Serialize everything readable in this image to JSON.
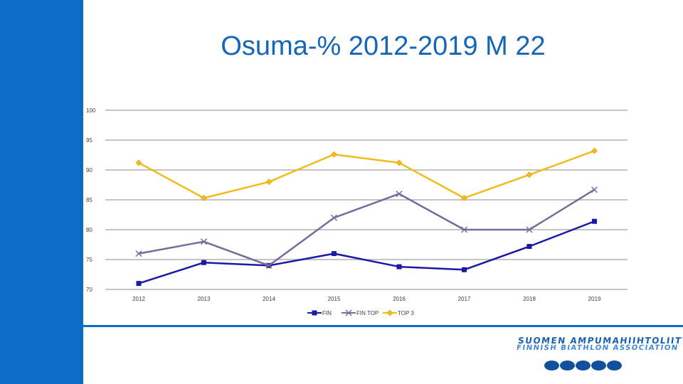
{
  "title": "Osuma-% 2012-2019 M 22",
  "colors": {
    "brand_blue": "#0a6ec4",
    "title_blue": "#1565b8",
    "fin": "#1a1aa6",
    "fin_top": "#7a6a9a",
    "top3": "#f0bc1c"
  },
  "logo": {
    "line1": "SUOMEN AMPUMAHIIHTOLIITTO",
    "line2": "FINNISH BIATHLON ASSOCIATION"
  },
  "chart_data": {
    "type": "line",
    "title": "Osuma-% 2012-2019 M 22",
    "xlabel": "",
    "ylabel": "",
    "categories": [
      "2012",
      "2013",
      "2014",
      "2015",
      "2016",
      "2017",
      "2018",
      "2019"
    ],
    "ylim": [
      70,
      100
    ],
    "yticks": [
      70,
      75,
      80,
      85,
      90,
      95,
      100
    ],
    "grid": true,
    "legend_position": "bottom",
    "series": [
      {
        "name": "FIN",
        "marker": "square",
        "color": "#1a1aa6",
        "values": [
          71,
          74.5,
          74,
          76,
          73.8,
          73.3,
          77.2,
          81.4
        ]
      },
      {
        "name": "FIN TOP",
        "marker": "x",
        "color": "#7a6a9a",
        "values": [
          76,
          78,
          74,
          82,
          86,
          80,
          80,
          86.7
        ]
      },
      {
        "name": "TOP 3",
        "marker": "diamond",
        "color": "#f0bc1c",
        "values": [
          91.2,
          85.3,
          88,
          92.6,
          91.2,
          85.3,
          89.2,
          93.2
        ]
      }
    ]
  }
}
